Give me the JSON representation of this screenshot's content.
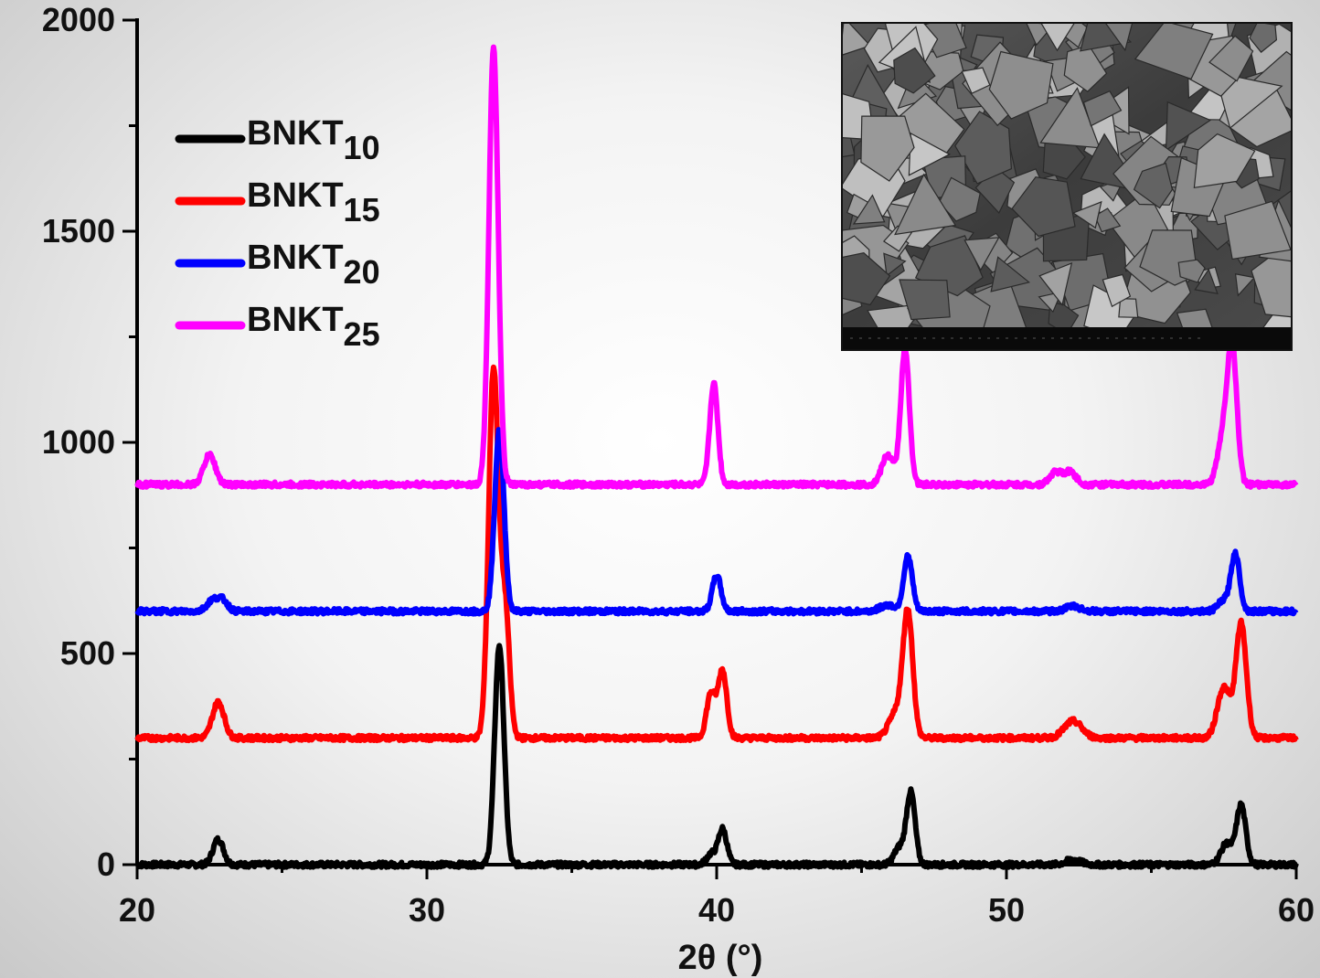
{
  "chart_data": {
    "type": "line",
    "xlabel": "2θ (°)",
    "ylabel": "",
    "xlim": [
      20,
      60
    ],
    "ylim": [
      0,
      2000
    ],
    "xticks": [
      "20",
      "30",
      "40",
      "50",
      "60"
    ],
    "yticks": [
      "0",
      "500",
      "1000",
      "1500",
      "2000"
    ],
    "grid": false,
    "legend_position": "top-left",
    "series": [
      {
        "name": "BNKT10",
        "label_base": "BNKT",
        "label_sub": "10",
        "color": "#000000",
        "baseline": 0,
        "peaks": [
          {
            "x": 22.8,
            "height": 60,
            "width": 0.18
          },
          {
            "x": 32.5,
            "height": 520,
            "width": 0.16
          },
          {
            "x": 39.8,
            "height": 25,
            "width": 0.15
          },
          {
            "x": 40.2,
            "height": 85,
            "width": 0.15
          },
          {
            "x": 46.3,
            "height": 40,
            "width": 0.18
          },
          {
            "x": 46.7,
            "height": 170,
            "width": 0.15
          },
          {
            "x": 52.3,
            "height": 12,
            "width": 0.25
          },
          {
            "x": 57.6,
            "height": 50,
            "width": 0.2
          },
          {
            "x": 58.1,
            "height": 140,
            "width": 0.16
          }
        ]
      },
      {
        "name": "BNKT15",
        "label_base": "BNKT",
        "label_sub": "15",
        "color": "#ff0000",
        "baseline": 300,
        "peaks": [
          {
            "x": 22.8,
            "height": 85,
            "width": 0.2
          },
          {
            "x": 32.3,
            "height": 870,
            "width": 0.17
          },
          {
            "x": 32.7,
            "height": 300,
            "width": 0.15
          },
          {
            "x": 39.8,
            "height": 105,
            "width": 0.15
          },
          {
            "x": 40.2,
            "height": 160,
            "width": 0.15
          },
          {
            "x": 46.2,
            "height": 60,
            "width": 0.25
          },
          {
            "x": 46.6,
            "height": 290,
            "width": 0.17
          },
          {
            "x": 52.3,
            "height": 40,
            "width": 0.3
          },
          {
            "x": 57.5,
            "height": 120,
            "width": 0.22
          },
          {
            "x": 58.1,
            "height": 270,
            "width": 0.18
          }
        ]
      },
      {
        "name": "BNKT20",
        "label_base": "BNKT",
        "label_sub": "20",
        "color": "#0000ff",
        "baseline": 600,
        "peaks": [
          {
            "x": 22.6,
            "height": 25,
            "width": 0.2
          },
          {
            "x": 22.95,
            "height": 25,
            "width": 0.18
          },
          {
            "x": 32.5,
            "height": 430,
            "width": 0.16
          },
          {
            "x": 40.0,
            "height": 85,
            "width": 0.15
          },
          {
            "x": 45.9,
            "height": 15,
            "width": 0.25
          },
          {
            "x": 46.6,
            "height": 130,
            "width": 0.15
          },
          {
            "x": 52.3,
            "height": 12,
            "width": 0.25
          },
          {
            "x": 57.5,
            "height": 25,
            "width": 0.2
          },
          {
            "x": 57.9,
            "height": 135,
            "width": 0.15
          }
        ]
      },
      {
        "name": "BNKT25",
        "label_base": "BNKT",
        "label_sub": "25",
        "color": "#ff00ff",
        "baseline": 900,
        "peaks": [
          {
            "x": 22.5,
            "height": 70,
            "width": 0.2
          },
          {
            "x": 32.3,
            "height": 1030,
            "width": 0.16
          },
          {
            "x": 39.9,
            "height": 240,
            "width": 0.14
          },
          {
            "x": 45.9,
            "height": 70,
            "width": 0.2
          },
          {
            "x": 46.5,
            "height": 320,
            "width": 0.15
          },
          {
            "x": 51.7,
            "height": 30,
            "width": 0.2
          },
          {
            "x": 52.2,
            "height": 30,
            "width": 0.2
          },
          {
            "x": 57.5,
            "height": 120,
            "width": 0.2
          },
          {
            "x": 57.8,
            "height": 300,
            "width": 0.16
          }
        ]
      }
    ]
  },
  "inset": {
    "kind": "SEM micrograph",
    "scalebar_text": ""
  }
}
